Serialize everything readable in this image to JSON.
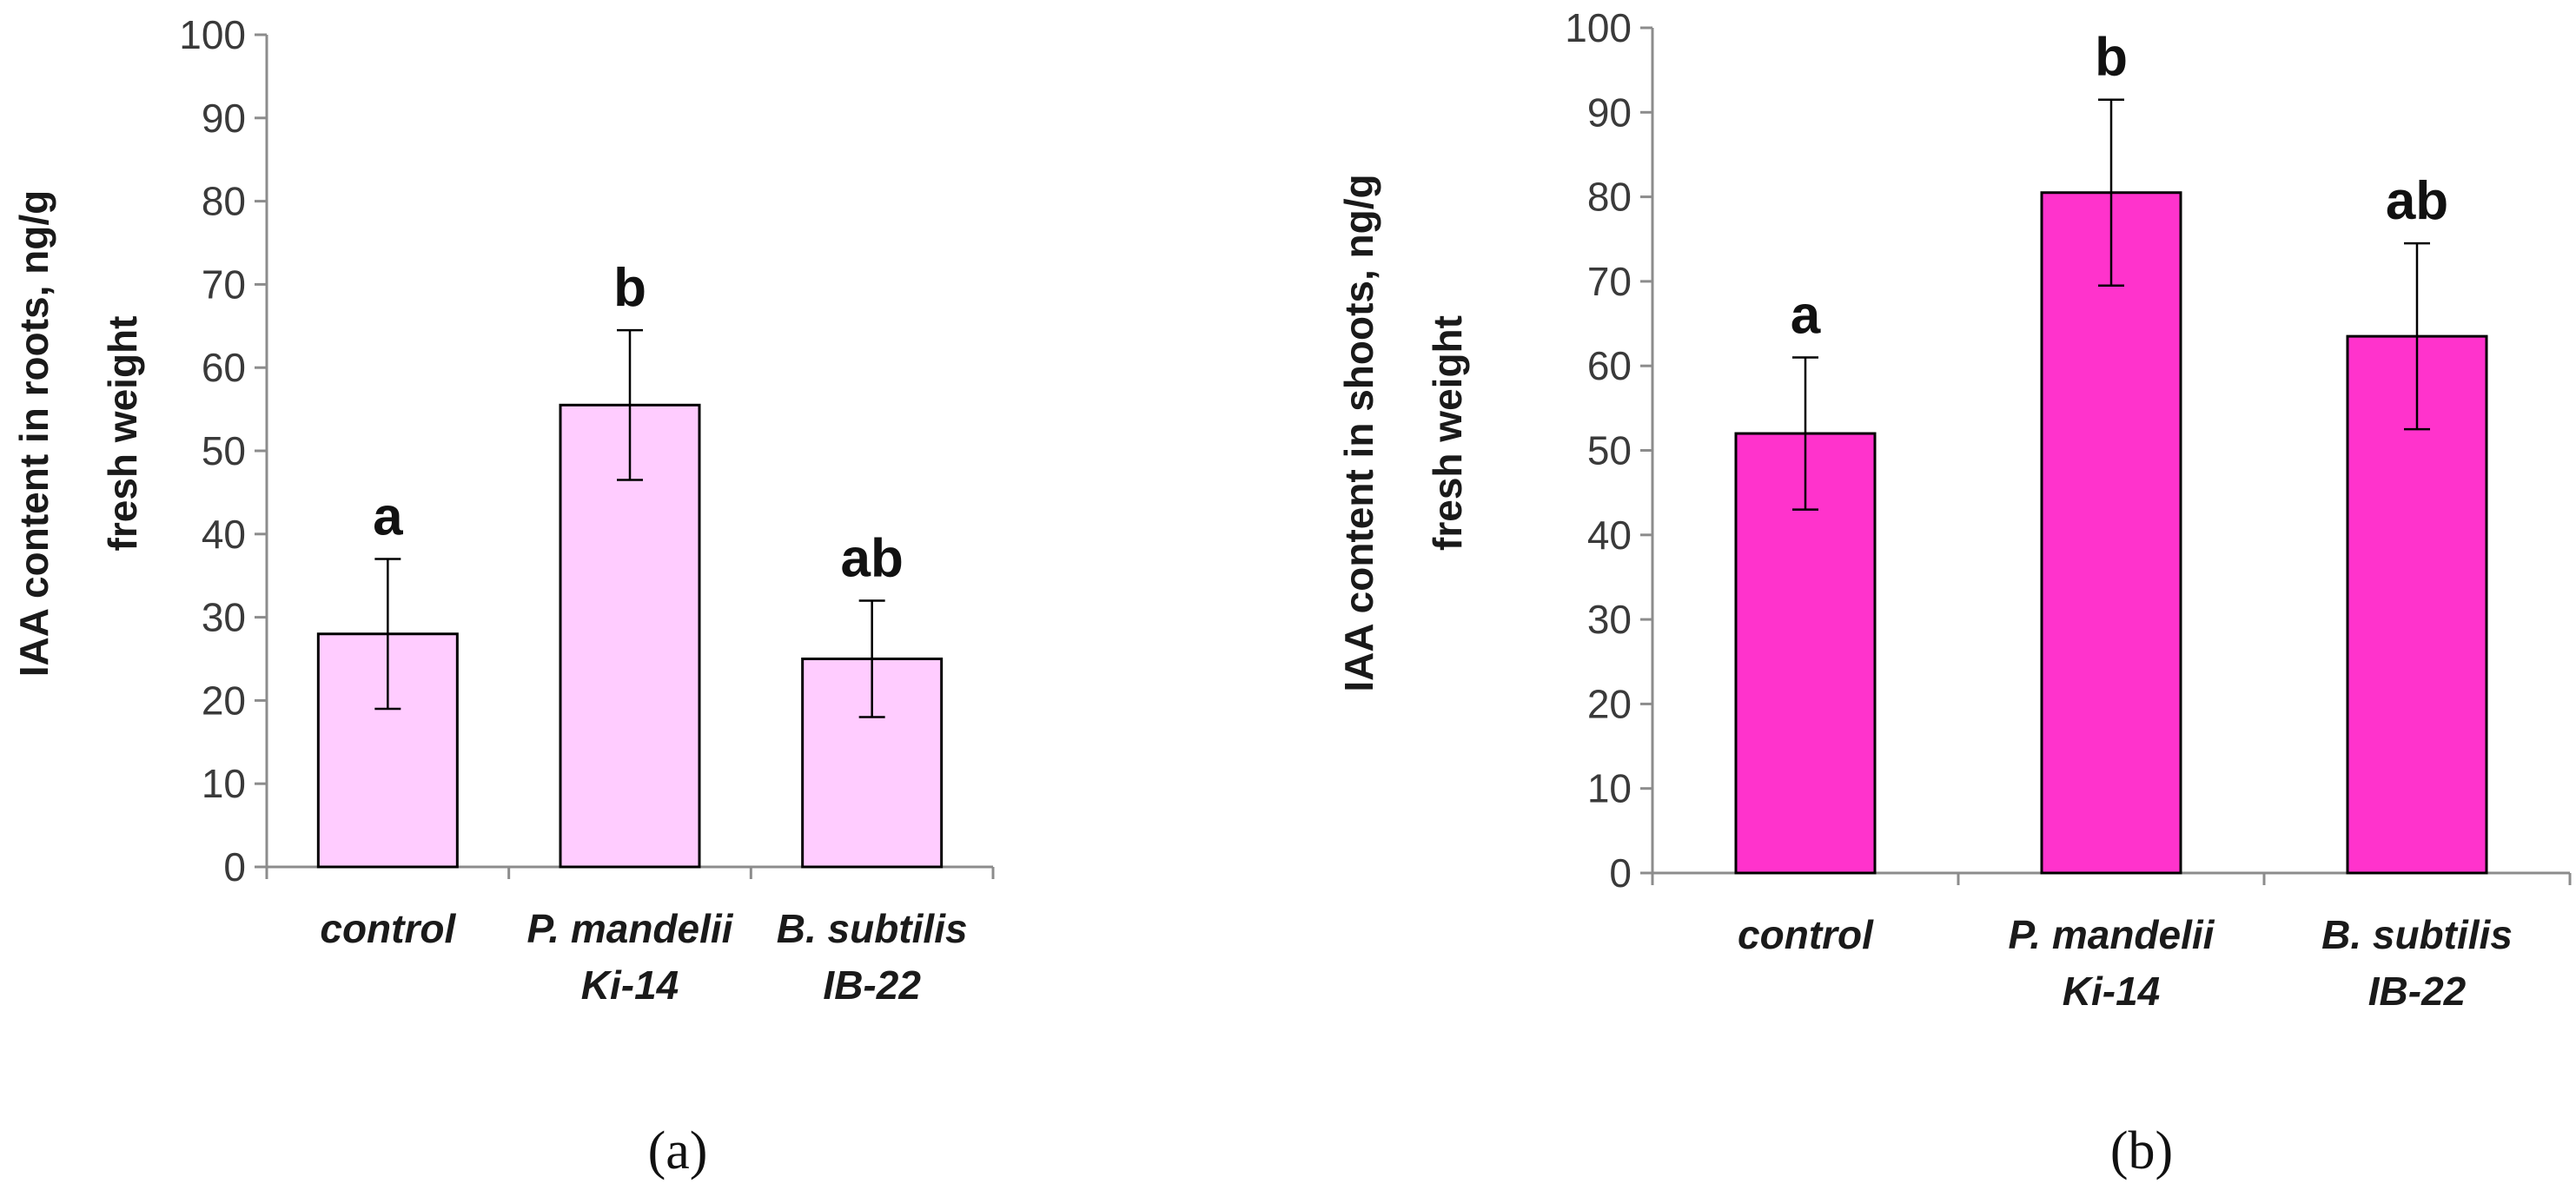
{
  "chart_data": [
    {
      "type": "bar",
      "panel_label": "(a)",
      "ylabel_lines": [
        "IAA content in roots, ng/g",
        "fresh weight"
      ],
      "ylim": [
        0,
        100
      ],
      "yticks": [
        0,
        10,
        20,
        30,
        40,
        50,
        60,
        70,
        80,
        90,
        100
      ],
      "categories": [
        {
          "lines": [
            "control"
          ],
          "value": 28,
          "error": 9,
          "significance": "a"
        },
        {
          "lines": [
            "P. mandelii",
            "Ki-14"
          ],
          "value": 55.5,
          "error": 9,
          "significance": "b"
        },
        {
          "lines": [
            "B. subtilis",
            "IB-22"
          ],
          "value": 25,
          "error": 7,
          "significance": "ab"
        }
      ],
      "bar_color": "#ffccff"
    },
    {
      "type": "bar",
      "panel_label": "(b)",
      "ylabel_lines": [
        "IAA content in shoots, ng/g",
        "fresh weight"
      ],
      "ylim": [
        0,
        100
      ],
      "yticks": [
        0,
        10,
        20,
        30,
        40,
        50,
        60,
        70,
        80,
        90,
        100
      ],
      "categories": [
        {
          "lines": [
            "control"
          ],
          "value": 52,
          "error": 9,
          "significance": "a"
        },
        {
          "lines": [
            "P. mandelii",
            "Ki-14"
          ],
          "value": 80.5,
          "error": 11,
          "significance": "b"
        },
        {
          "lines": [
            "B. subtilis",
            "IB-22"
          ],
          "value": 63.5,
          "error": 11,
          "significance": "ab"
        }
      ],
      "bar_color": "#ff33cc"
    }
  ]
}
